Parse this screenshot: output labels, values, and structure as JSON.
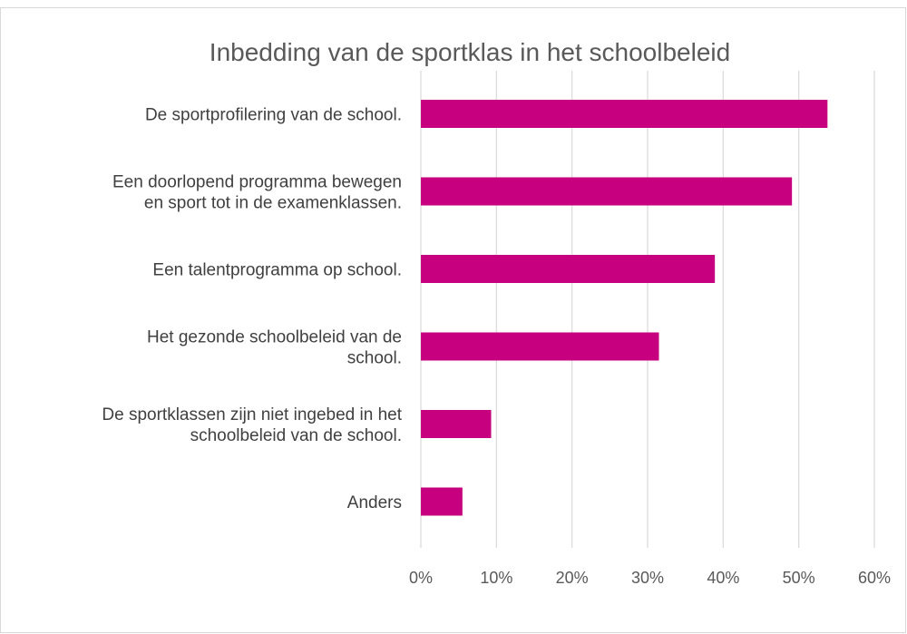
{
  "chart_data": {
    "type": "bar",
    "orientation": "horizontal",
    "title": "Inbedding van de sportklas in het schoolbeleid",
    "categories": [
      [
        "De sportprofilering van de school."
      ],
      [
        "Een doorlopend programma bewegen",
        "en sport tot in de examenklassen."
      ],
      [
        "Een talentprogramma op school."
      ],
      [
        "Het gezonde schoolbeleid van de",
        "school."
      ],
      [
        "De sportklassen zijn niet ingebed in het",
        "schoolbeleid van de school."
      ],
      [
        "Anders"
      ]
    ],
    "values": [
      0.538,
      0.491,
      0.389,
      0.315,
      0.093,
      0.055
    ],
    "xlim": [
      0,
      0.6
    ],
    "x_ticks": [
      "0%",
      "10%",
      "20%",
      "30%",
      "40%",
      "50%",
      "60%"
    ],
    "xlabel": "",
    "ylabel": "",
    "grid": "vertical",
    "legend": "none",
    "bar_color": "#C6007E"
  }
}
